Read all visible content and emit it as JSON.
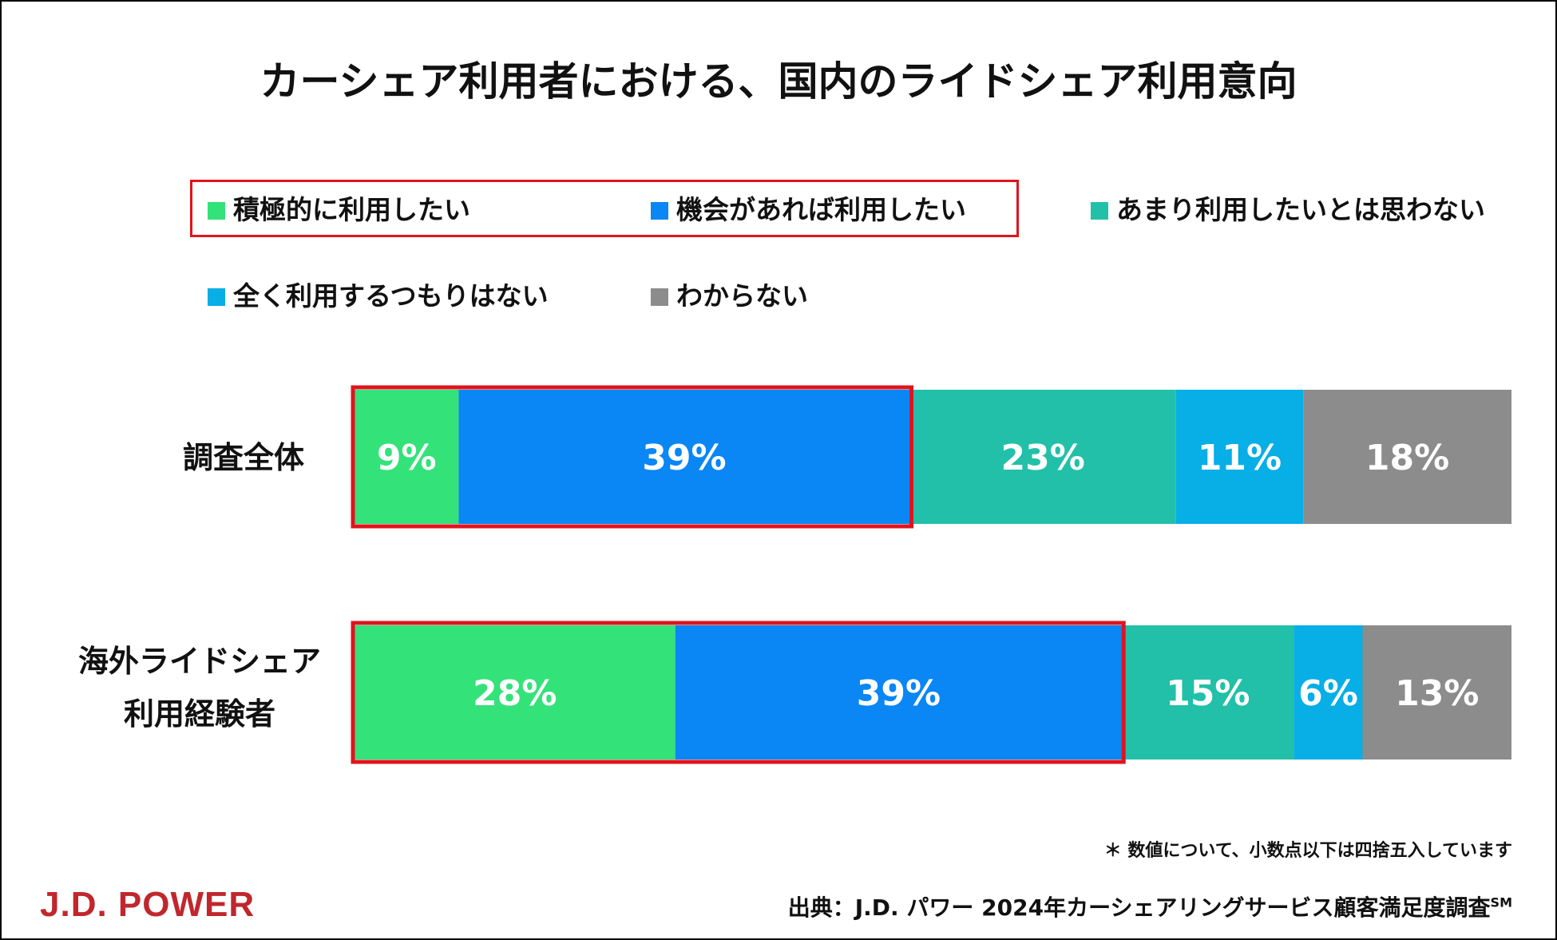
{
  "title": "カーシェア利用者における、国内のライドシェア利用意向",
  "colors": {
    "positive": "#34e27a",
    "maybe": "#0a86f5",
    "not_much": "#22c0a8",
    "never": "#08aee6",
    "unknown": "#8c8c8c",
    "highlight": "#e0141e",
    "logo": "#c0272d"
  },
  "chart_data": {
    "type": "bar",
    "orientation": "horizontal",
    "stacked": true,
    "unit": "%",
    "xlim": [
      0,
      100
    ],
    "grid": false,
    "legend_position": "top",
    "categories": [
      "調査全体",
      "海外ライドシェア利用経験者"
    ],
    "series": [
      {
        "name": "積極的に利用したい",
        "values": [
          9,
          28
        ],
        "color": "#34e27a"
      },
      {
        "name": "機会があれば利用したい",
        "values": [
          39,
          39
        ],
        "color": "#0a86f5"
      },
      {
        "name": "あまり利用したいとは思わない",
        "values": [
          23,
          15
        ],
        "color": "#22c0a8"
      },
      {
        "name": "全く利用するつもりはない",
        "values": [
          11,
          6
        ],
        "color": "#08aee6"
      },
      {
        "name": "わからない",
        "values": [
          18,
          13
        ],
        "color": "#8c8c8c"
      }
    ],
    "data_labels": [
      [
        "9%",
        "39%",
        "23%",
        "11%",
        "18%"
      ],
      [
        "28%",
        "39%",
        "15%",
        "6%",
        "13%"
      ]
    ],
    "highlighted_series": [
      0,
      1
    ]
  },
  "row_labels": [
    [
      "調査全体"
    ],
    [
      "海外ライドシェア",
      "利用経験者"
    ]
  ],
  "footnote": "＊ 数値について、小数点以下は四捨五入しています",
  "source_text": "出典：J.D. パワー 2024年カーシェアリングサービス顧客満足度調査",
  "source_mark": "SM",
  "logo_text": "J.D. POWER"
}
